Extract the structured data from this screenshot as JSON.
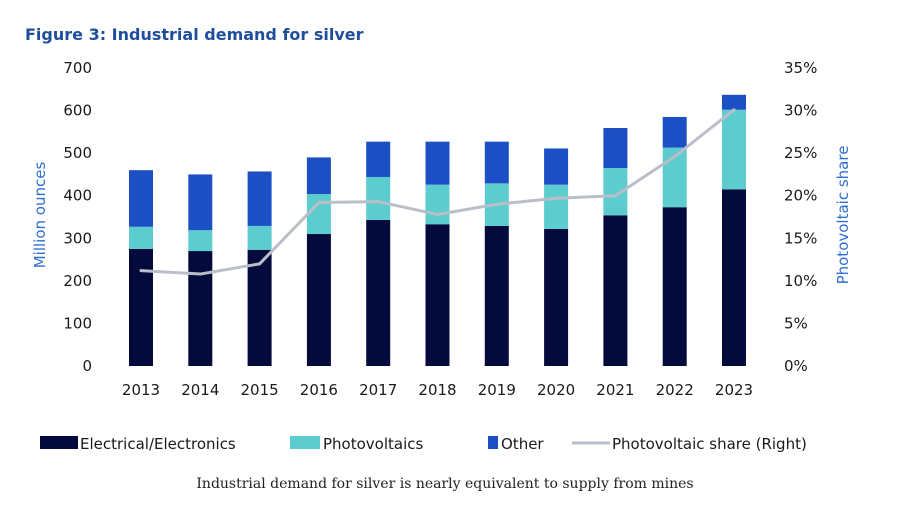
{
  "chart_data": {
    "type": "bar",
    "stacked": true,
    "title": "Figure 3: Industrial demand for silver",
    "caption": "Industrial demand for silver is nearly equivalent to supply from mines",
    "ylabel": "Million ounces",
    "y2label": "Photovoltaic share",
    "ylim": [
      0,
      700
    ],
    "y2lim": [
      0,
      35
    ],
    "yticks": [
      "0",
      "100",
      "200",
      "300",
      "400",
      "500",
      "600",
      "700"
    ],
    "y2ticks": [
      "0%",
      "5%",
      "10%",
      "15%",
      "20%",
      "25%",
      "30%",
      "35%"
    ],
    "categories": [
      "2013",
      "2014",
      "2015",
      "2016",
      "2017",
      "2018",
      "2019",
      "2020",
      "2021",
      "2022",
      "2023"
    ],
    "series": [
      {
        "name": "Electrical/Electronics",
        "color": "#050a3d",
        "values": [
          275,
          270,
          273,
          310,
          343,
          333,
          329,
          322,
          354,
          373,
          415
        ]
      },
      {
        "name": "Photovoltaics",
        "color": "#5ccccf",
        "values": [
          52,
          49,
          56,
          94,
          101,
          93,
          100,
          104,
          111,
          140,
          187
        ]
      },
      {
        "name": "Other",
        "color": "#1c4fc4",
        "values": [
          133,
          131,
          128,
          86,
          83,
          101,
          98,
          85,
          94,
          72,
          35
        ]
      }
    ],
    "line_series": {
      "name": "Photovoltaic share (Right)",
      "color": "#b9bec8",
      "axis": "right",
      "values": [
        11.2,
        10.8,
        12.0,
        19.2,
        19.3,
        17.8,
        19.0,
        19.7,
        20.0,
        24.6,
        30.1
      ]
    },
    "legend_position": "bottom",
    "grid": false
  }
}
